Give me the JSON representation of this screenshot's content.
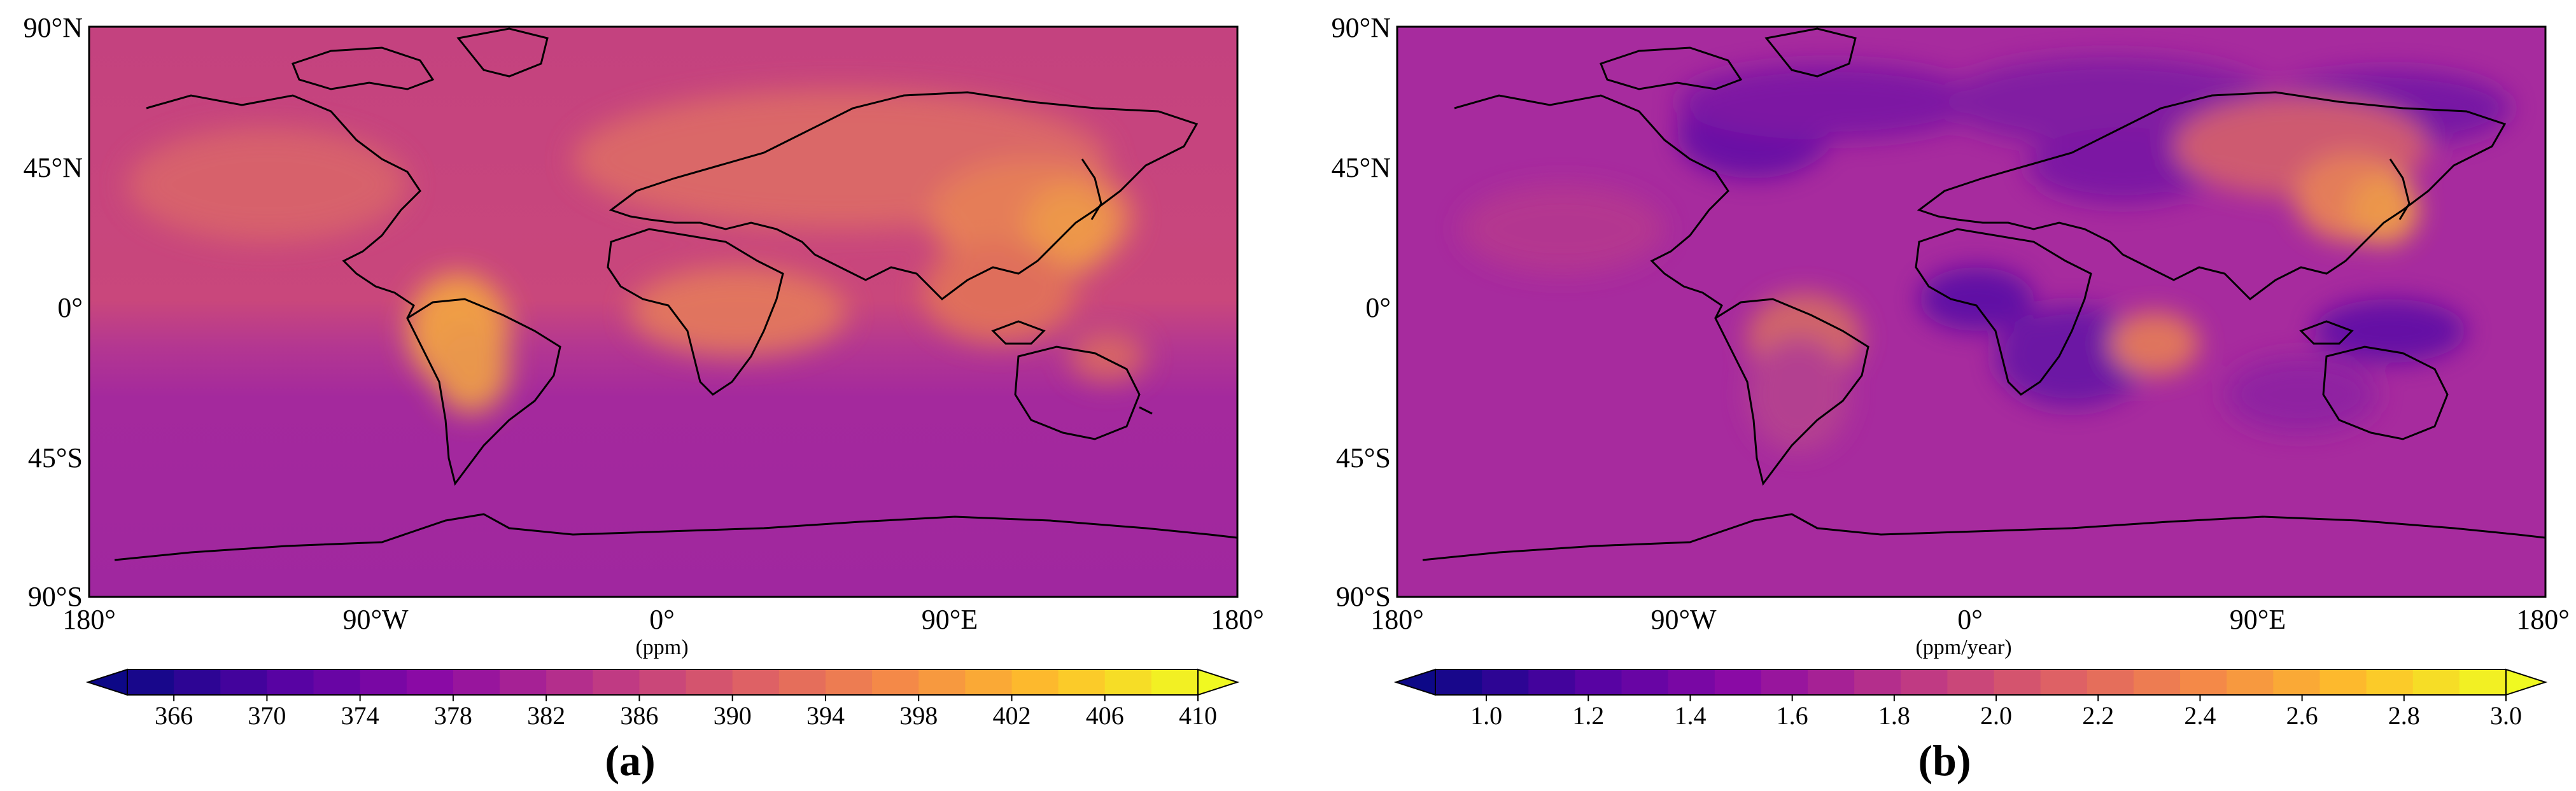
{
  "panels": [
    {
      "label": "(a)",
      "lat_ticks": [
        "90°N",
        "45°N",
        "0°",
        "45°S",
        "90°S"
      ],
      "lon_ticks": [
        "180°",
        "90°W",
        "0°",
        "90°E",
        "180°"
      ],
      "unit": "(ppm)",
      "colorbar": {
        "ticks": [
          "366",
          "370",
          "374",
          "378",
          "382",
          "386",
          "390",
          "394",
          "398",
          "402",
          "406",
          "410"
        ],
        "range": [
          364,
          410
        ],
        "colormap": "plasma",
        "extend": "both"
      },
      "colors": {
        "ocean_south": "#A1289E",
        "ocean_north": "#C4417F",
        "high_land": "#F2A044",
        "land_mid": "#DA6468"
      }
    },
    {
      "label": "(b)",
      "lat_ticks": [
        "90°N",
        "45°N",
        "0°",
        "45°S",
        "90°S"
      ],
      "lon_ticks": [
        "180°",
        "90°W",
        "0°",
        "90°E",
        "180°"
      ],
      "unit": "(ppm/year)",
      "colorbar": {
        "ticks": [
          "1.0",
          "1.2",
          "1.4",
          "1.6",
          "1.8",
          "2.0",
          "2.2",
          "2.4",
          "2.6",
          "2.8",
          "3.0"
        ],
        "range": [
          0.9,
          3.0
        ],
        "colormap": "plasma",
        "extend": "both"
      },
      "colors": {
        "background": "#A72B9E",
        "low": "#5E0EA6",
        "high": "#F2A044"
      }
    }
  ]
}
